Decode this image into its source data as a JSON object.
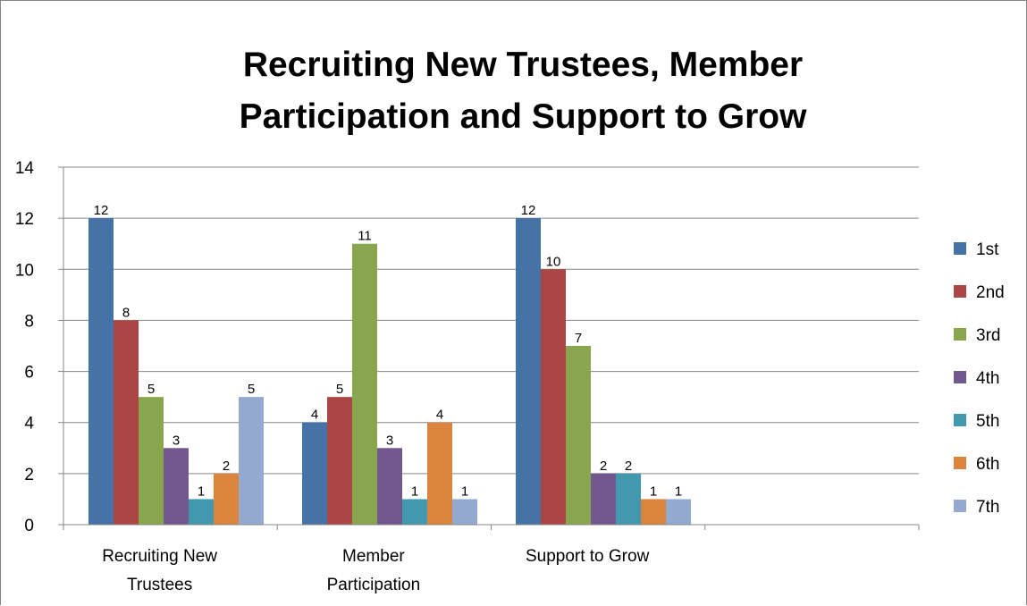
{
  "chart_data": {
    "type": "bar",
    "title_lines": [
      "Recruiting New Trustees, Member",
      "Participation and Support to Grow"
    ],
    "categories": [
      [
        "Recruiting New",
        "Trustees"
      ],
      [
        "Member",
        "Participation"
      ],
      [
        "Support to Grow"
      ]
    ],
    "series": [
      {
        "name": "1st",
        "color": "#4572A7",
        "values": [
          12,
          4,
          12
        ]
      },
      {
        "name": "2nd",
        "color": "#AA4643",
        "values": [
          8,
          5,
          10
        ]
      },
      {
        "name": "3rd",
        "color": "#89A54E",
        "values": [
          5,
          11,
          7
        ]
      },
      {
        "name": "4th",
        "color": "#71588F",
        "values": [
          3,
          3,
          2
        ]
      },
      {
        "name": "5th",
        "color": "#4198AF",
        "values": [
          1,
          1,
          2
        ]
      },
      {
        "name": "6th",
        "color": "#DB843D",
        "values": [
          2,
          4,
          1
        ]
      },
      {
        "name": "7th",
        "color": "#93A9CF",
        "values": [
          5,
          1,
          1
        ]
      }
    ],
    "ylim": [
      0,
      14
    ],
    "yticks": [
      0,
      2,
      4,
      6,
      8,
      10,
      12,
      14
    ],
    "grid": true,
    "legend_position": "right"
  }
}
